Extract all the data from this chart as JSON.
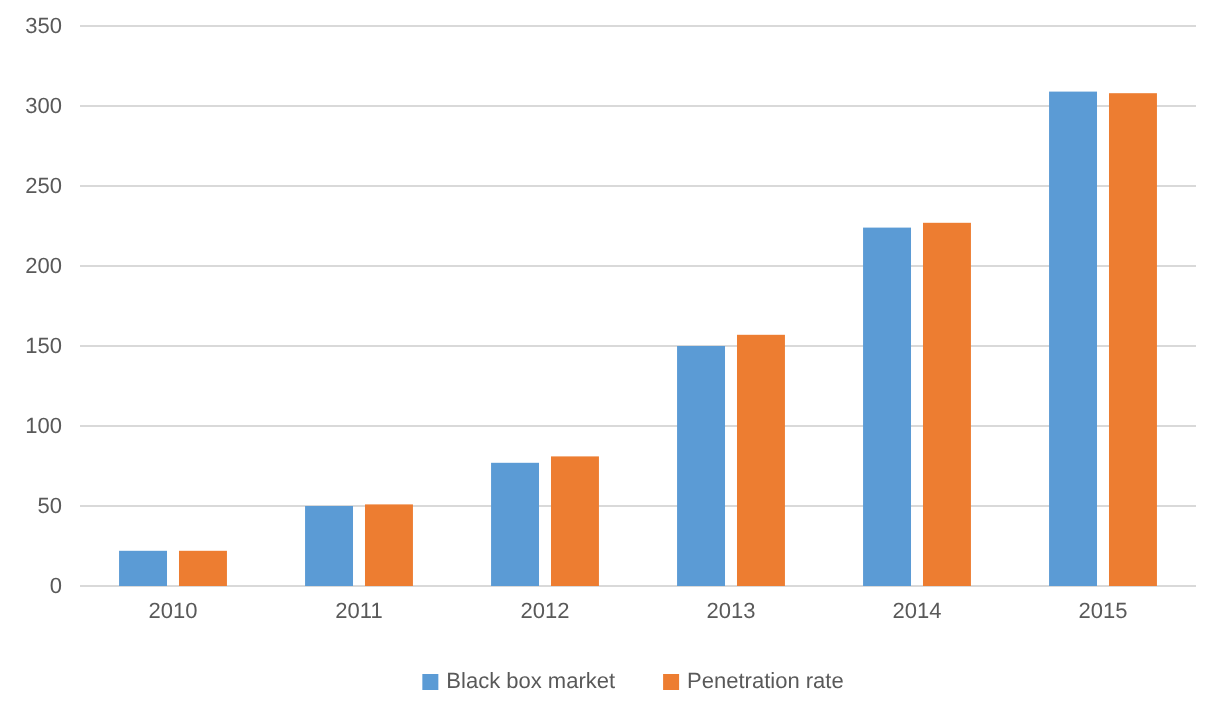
{
  "chart_data": {
    "type": "bar",
    "categories": [
      "2010",
      "2011",
      "2012",
      "2013",
      "2014",
      "2015"
    ],
    "series": [
      {
        "name": "Black box market",
        "color": "#5b9bd5",
        "values": [
          22,
          50,
          77,
          150,
          224,
          309
        ]
      },
      {
        "name": "Penetration rate",
        "color": "#ed7d31",
        "values": [
          22,
          51,
          81,
          157,
          227,
          308
        ]
      }
    ],
    "ylim": [
      0,
      350
    ],
    "yticks": [
      0,
      50,
      100,
      150,
      200,
      250,
      300,
      350
    ],
    "grid": "y",
    "legend": "bottom"
  }
}
